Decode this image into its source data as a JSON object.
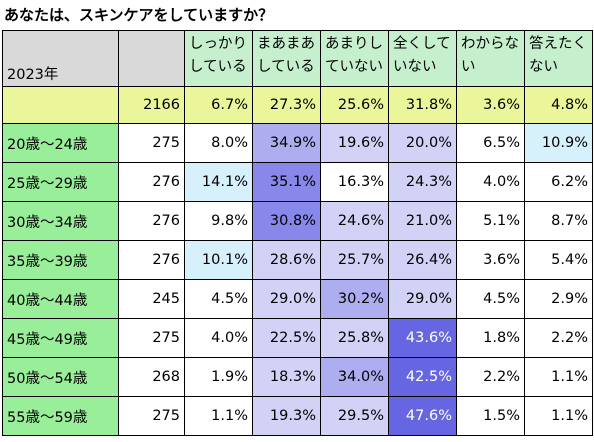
{
  "title": "あなたは、スキンケアをしていますか？",
  "header": {
    "year_label": "2023年",
    "columns": [
      [
        "しっかり",
        "している"
      ],
      [
        "まあまあ",
        "している"
      ],
      [
        "あまりし",
        "ていない"
      ],
      [
        "全くして",
        "いない"
      ],
      [
        "わからな",
        "い"
      ],
      [
        "答えたく",
        "ない"
      ]
    ]
  },
  "total": {
    "label": "",
    "n": "2166",
    "values": [
      "6.7%",
      "27.3%",
      "25.6%",
      "31.8%",
      "3.6%",
      "4.8%"
    ],
    "shades": [
      "tot",
      "c2",
      "c2",
      "c4",
      "tot",
      "tot"
    ]
  },
  "rows": [
    {
      "label": "20歳～24歳",
      "n": "275",
      "values": [
        "8.0%",
        "34.9%",
        "19.6%",
        "20.0%",
        "6.5%",
        "10.9%"
      ],
      "shades": [
        "c0",
        "c3",
        "c2",
        "c2",
        "c0",
        "c1"
      ]
    },
    {
      "label": "25歳～29歳",
      "n": "276",
      "values": [
        "14.1%",
        "35.1%",
        "16.3%",
        "24.3%",
        "4.0%",
        "6.2%"
      ],
      "shades": [
        "c1",
        "c4",
        "c0",
        "c2",
        "c0",
        "c0"
      ]
    },
    {
      "label": "30歳～34歳",
      "n": "276",
      "values": [
        "9.8%",
        "30.8%",
        "24.6%",
        "21.0%",
        "5.1%",
        "8.7%"
      ],
      "shades": [
        "c0",
        "c4",
        "c2",
        "c2",
        "c0",
        "c0"
      ]
    },
    {
      "label": "35歳～39歳",
      "n": "276",
      "values": [
        "10.1%",
        "28.6%",
        "25.7%",
        "26.4%",
        "3.6%",
        "5.4%"
      ],
      "shades": [
        "c1",
        "c2",
        "c2",
        "c2",
        "c0",
        "c0"
      ]
    },
    {
      "label": "40歳～44歳",
      "n": "245",
      "values": [
        "4.5%",
        "29.0%",
        "30.2%",
        "29.0%",
        "4.5%",
        "2.9%"
      ],
      "shades": [
        "c0",
        "c2",
        "c3",
        "c2",
        "c0",
        "c0"
      ]
    },
    {
      "label": "45歳～49歳",
      "n": "275",
      "values": [
        "4.0%",
        "22.5%",
        "25.8%",
        "43.6%",
        "1.8%",
        "2.2%"
      ],
      "shades": [
        "c0",
        "c2",
        "c2",
        "c5",
        "c0",
        "c0"
      ]
    },
    {
      "label": "50歳～54歳",
      "n": "268",
      "values": [
        "1.9%",
        "18.3%",
        "34.0%",
        "42.5%",
        "2.2%",
        "1.1%"
      ],
      "shades": [
        "c0",
        "c2",
        "c3",
        "c5",
        "c0",
        "c0"
      ]
    },
    {
      "label": "55歳～59歳",
      "n": "275",
      "values": [
        "1.1%",
        "19.3%",
        "29.5%",
        "47.6%",
        "1.5%",
        "1.1%"
      ],
      "shades": [
        "c0",
        "c2",
        "c2",
        "c5",
        "c0",
        "c0"
      ]
    }
  ],
  "colors": {
    "header_response": "#c6efce",
    "header_gray": "#d9d9d9",
    "total_row": "#ebf59a",
    "age_label": "#99ee99",
    "light_blue": "#d6f0fc",
    "lavender": "#d2d2f6",
    "purple_mid": "#adadf0",
    "purple": "#8888ea",
    "purple_dark": "#6666e2"
  }
}
